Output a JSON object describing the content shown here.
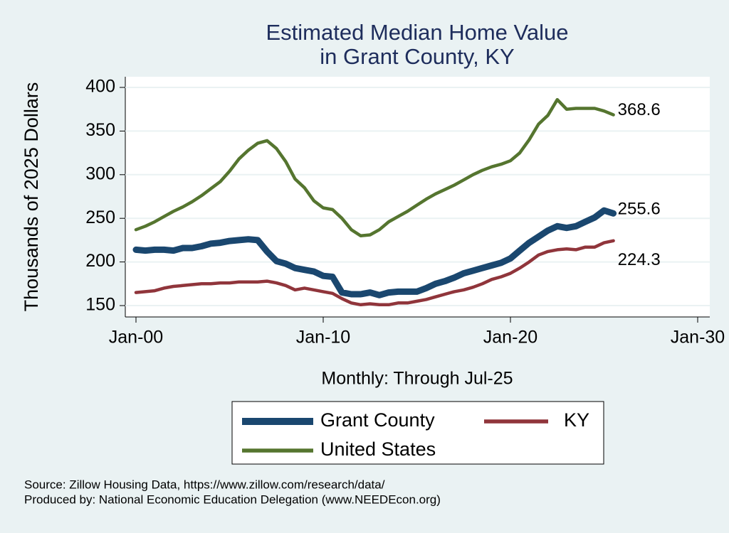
{
  "chart_data": {
    "type": "line",
    "title": "Estimated Median Home Value",
    "subtitle": "in Grant County, KY",
    "y_label": "Thousands of 2025 Dollars",
    "x_label": "Monthly: Through Jul-25",
    "source": "Source: Zillow Housing Data, https://www.zillow.com/research/data/",
    "producer": "Produced by: National Economic Education Delegation (www.NEEDEcon.org)",
    "x": [
      2000,
      2000.5,
      2001,
      2001.5,
      2002,
      2002.5,
      2003,
      2003.5,
      2004,
      2004.5,
      2005,
      2005.5,
      2006,
      2006.5,
      2007,
      2007.5,
      2008,
      2008.5,
      2009,
      2009.5,
      2010,
      2010.5,
      2011,
      2011.5,
      2012,
      2012.5,
      2013,
      2013.5,
      2014,
      2014.5,
      2015,
      2015.5,
      2016,
      2016.5,
      2017,
      2017.5,
      2018,
      2018.5,
      2019,
      2019.5,
      2020,
      2020.5,
      2021,
      2021.5,
      2022,
      2022.5,
      2023,
      2023.5,
      2024,
      2024.5,
      2025,
      2025.5
    ],
    "xlim": [
      2000,
      2030
    ],
    "xticks": [
      {
        "value": 2000,
        "label": "Jan-00"
      },
      {
        "value": 2010,
        "label": "Jan-10"
      },
      {
        "value": 2020,
        "label": "Jan-20"
      },
      {
        "value": 2030,
        "label": "Jan-30"
      }
    ],
    "ylim": [
      150,
      400
    ],
    "yticks": [
      150,
      200,
      250,
      300,
      350,
      400
    ],
    "grid": true,
    "series": [
      {
        "name": "Grant County",
        "color": "#1a476f",
        "values": [
          214,
          213,
          214,
          214,
          213,
          216,
          216,
          218,
          221,
          222,
          224,
          225,
          226,
          225,
          212,
          201,
          198,
          193,
          191,
          189,
          184,
          183,
          165,
          163,
          163,
          165,
          162,
          165,
          166,
          166,
          166,
          170,
          175,
          178,
          182,
          187,
          190,
          193,
          196,
          199,
          204,
          213,
          222,
          229,
          236,
          241,
          239,
          241,
          246,
          251,
          259,
          255.6
        ]
      },
      {
        "name": "KY",
        "color": "#90353b",
        "values": [
          165,
          166,
          167,
          170,
          172,
          173,
          174,
          175,
          175,
          176,
          176,
          177,
          177,
          177,
          178,
          176,
          173,
          168,
          170,
          168,
          166,
          164,
          158,
          153,
          151,
          152,
          151,
          151,
          153,
          153,
          155,
          157,
          160,
          163,
          166,
          168,
          171,
          175,
          180,
          183,
          187,
          193,
          200,
          208,
          212,
          214,
          215,
          214,
          217,
          217,
          222,
          224.3
        ]
      },
      {
        "name": "United States",
        "color": "#55752f",
        "values": [
          237,
          241,
          246,
          252,
          258,
          263,
          269,
          276,
          284,
          292,
          304,
          318,
          328,
          336,
          339,
          330,
          315,
          295,
          285,
          270,
          262,
          260,
          250,
          237,
          230,
          231,
          237,
          246,
          252,
          258,
          265,
          272,
          278,
          283,
          288,
          294,
          300,
          305,
          309,
          312,
          316,
          325,
          340,
          358,
          368,
          386,
          375,
          376,
          376,
          376,
          373,
          368.6
        ]
      }
    ]
  }
}
